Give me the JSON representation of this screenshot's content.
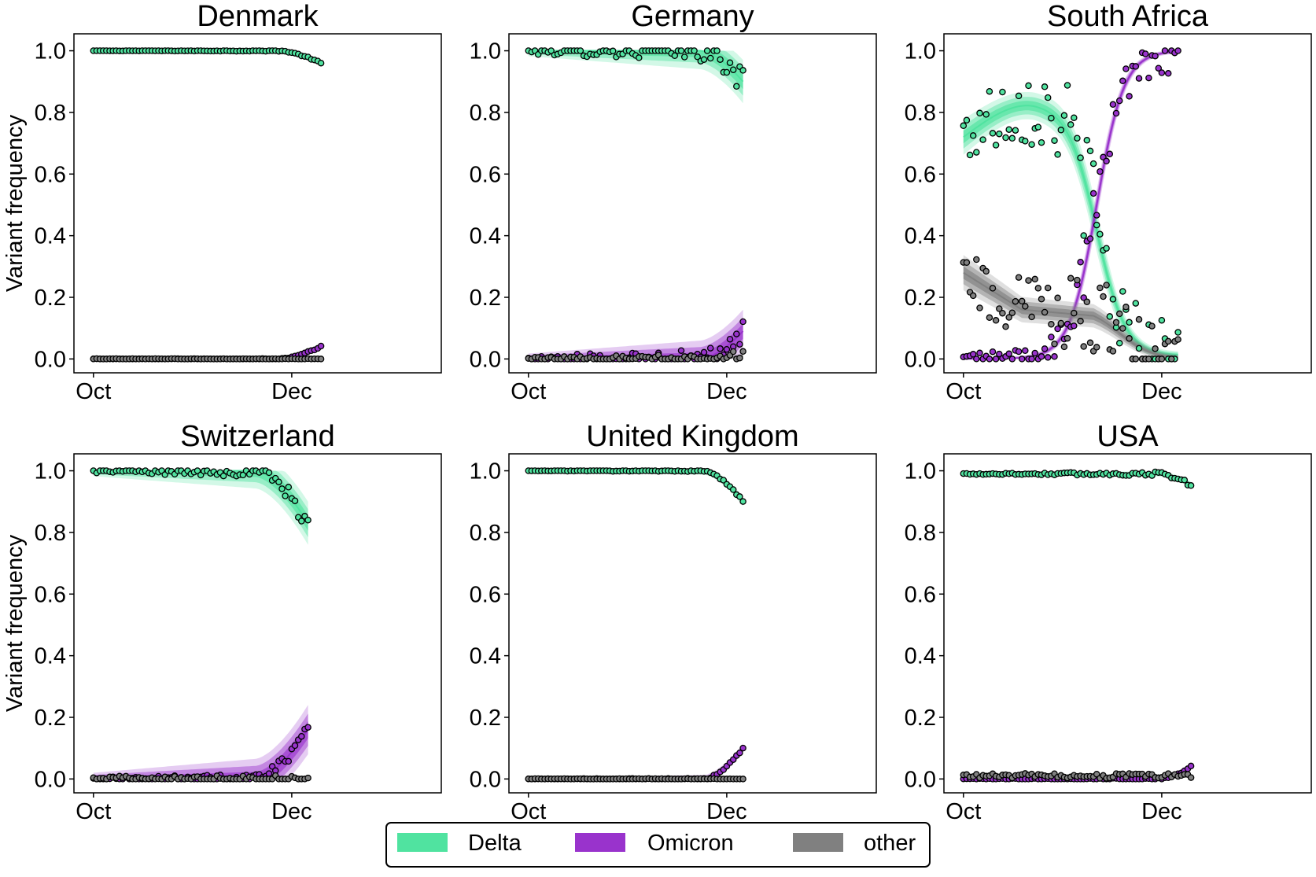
{
  "chart_data": {
    "type": "scatter",
    "ylabel": "Variant frequency",
    "ylim": [
      -0.045,
      1.055
    ],
    "yticks": [
      0.0,
      0.2,
      0.4,
      0.6,
      0.8,
      1.0
    ],
    "ytick_labels": [
      "0.0",
      "0.2",
      "0.4",
      "0.6",
      "0.8",
      "1.0"
    ],
    "xlim": [
      -6,
      107
    ],
    "xticks": [
      0,
      61
    ],
    "xtick_labels": [
      "Oct",
      "Dec"
    ],
    "legend": {
      "placement": "bottom-center",
      "entries": [
        "Delta",
        "Omicron",
        "other"
      ]
    },
    "colors": {
      "Delta": "#50e3a0",
      "Omicron": "#9933cc",
      "other": "#808080"
    },
    "panels": [
      {
        "title": "Denmark",
        "series": [
          {
            "name": "Delta",
            "shape": "flat_then_drop",
            "days": 71,
            "start": 1.0,
            "end": 0.96,
            "drop_start": 57,
            "band": 0.01,
            "noise": 0.002
          },
          {
            "name": "Omicron",
            "shape": "rise_late",
            "days": 71,
            "start": 0.0,
            "end": 0.04,
            "drop_start": 57,
            "band": 0.01,
            "noise": 0.002
          },
          {
            "name": "other",
            "shape": "flat",
            "days": 71,
            "start": 0.0,
            "end": 0.0,
            "band": 0.003,
            "noise": 0.001
          }
        ]
      },
      {
        "title": "Germany",
        "series": [
          {
            "name": "Delta",
            "shape": "flat_then_drop",
            "days": 67,
            "start": 1.0,
            "end": 0.9,
            "drop_start": 53,
            "band": 0.07,
            "noise": 0.04
          },
          {
            "name": "Omicron",
            "shape": "rise_late",
            "days": 67,
            "start": 0.0,
            "end": 0.09,
            "drop_start": 53,
            "band": 0.07,
            "noise": 0.035
          },
          {
            "name": "other",
            "shape": "flat_then_rise",
            "days": 67,
            "start": 0.0,
            "end": 0.01,
            "drop_start": 55,
            "band": 0.008,
            "noise": 0.02
          }
        ]
      },
      {
        "title": "South Africa",
        "series": [
          {
            "name": "Delta",
            "shape": "hump_then_fall",
            "days": 67,
            "start": 0.72,
            "peak": 0.83,
            "peak_at": 22,
            "mid": 41,
            "end": 0.01,
            "band": 0.06,
            "noise": 0.14
          },
          {
            "name": "Omicron",
            "shape": "logistic",
            "days": 67,
            "start": 0.0,
            "end": 1.0,
            "mid": 41,
            "band": 0.04,
            "noise": 0.07
          },
          {
            "name": "other",
            "shape": "decline",
            "days": 67,
            "start": 0.28,
            "mid_value": 0.14,
            "end": 0.0,
            "band": 0.06,
            "noise": 0.12
          }
        ]
      },
      {
        "title": "Switzerland",
        "series": [
          {
            "name": "Delta",
            "shape": "flat_then_drop",
            "days": 67,
            "start": 1.0,
            "end": 0.83,
            "drop_start": 50,
            "band": 0.07,
            "noise": 0.025
          },
          {
            "name": "Omicron",
            "shape": "rise_late",
            "days": 67,
            "start": 0.0,
            "end": 0.16,
            "drop_start": 50,
            "band": 0.08,
            "noise": 0.02
          },
          {
            "name": "other",
            "shape": "flat",
            "days": 67,
            "start": 0.0,
            "end": 0.0,
            "band": 0.005,
            "noise": 0.012
          }
        ]
      },
      {
        "title": "United Kingdom",
        "series": [
          {
            "name": "Delta",
            "shape": "flat_then_drop",
            "days": 67,
            "start": 1.0,
            "end": 0.9,
            "drop_start": 54,
            "band": 0.015,
            "noise": 0.003
          },
          {
            "name": "Omicron",
            "shape": "rise_late",
            "days": 67,
            "start": 0.0,
            "end": 0.1,
            "drop_start": 54,
            "band": 0.015,
            "noise": 0.003
          },
          {
            "name": "other",
            "shape": "flat",
            "days": 67,
            "start": 0.0,
            "end": 0.0,
            "band": 0.003,
            "noise": 0.001
          }
        ]
      },
      {
        "title": "USA",
        "series": [
          {
            "name": "Delta",
            "shape": "flat_then_drop",
            "days": 71,
            "start": 0.99,
            "end": 0.955,
            "drop_start": 60,
            "band": 0.01,
            "noise": 0.007
          },
          {
            "name": "Omicron",
            "shape": "rise_late",
            "days": 71,
            "start": 0.0,
            "end": 0.04,
            "drop_start": 60,
            "band": 0.01,
            "noise": 0.004
          },
          {
            "name": "other",
            "shape": "flat",
            "days": 71,
            "start": 0.01,
            "end": 0.01,
            "band": 0.006,
            "noise": 0.008
          }
        ]
      }
    ]
  }
}
